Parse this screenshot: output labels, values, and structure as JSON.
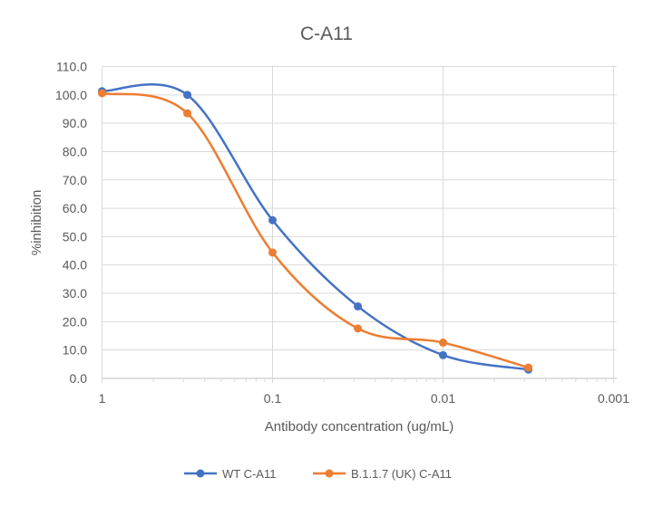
{
  "chart_data": {
    "type": "line",
    "title": "C-A11",
    "xlabel": "Antibody concentration (ug/mL)",
    "ylabel": "%inhibition",
    "x_scale": "log",
    "x_reversed": true,
    "xlim": [
      1,
      0.001
    ],
    "ylim": [
      0,
      110
    ],
    "x_ticks": [
      "1",
      "0.1",
      "0.01",
      "0.001"
    ],
    "y_ticks": [
      "0.0",
      "10.0",
      "20.0",
      "30.0",
      "40.0",
      "50.0",
      "60.0",
      "70.0",
      "80.0",
      "90.0",
      "100.0",
      "110.0"
    ],
    "grid": true,
    "smoothed": true,
    "legend_position": "bottom",
    "x": [
      1,
      0.316,
      0.1,
      0.0316,
      0.01,
      0.00316
    ],
    "series": [
      {
        "name": "WT C-A11",
        "color": "#4472C4",
        "values": [
          101.3,
          100.0,
          55.8,
          25.4,
          8.2,
          3.1
        ]
      },
      {
        "name": "B.1.1.7 (UK) C-A11",
        "color": "#ED7D31",
        "values": [
          100.6,
          93.5,
          44.4,
          17.6,
          12.6,
          3.8
        ]
      }
    ]
  }
}
